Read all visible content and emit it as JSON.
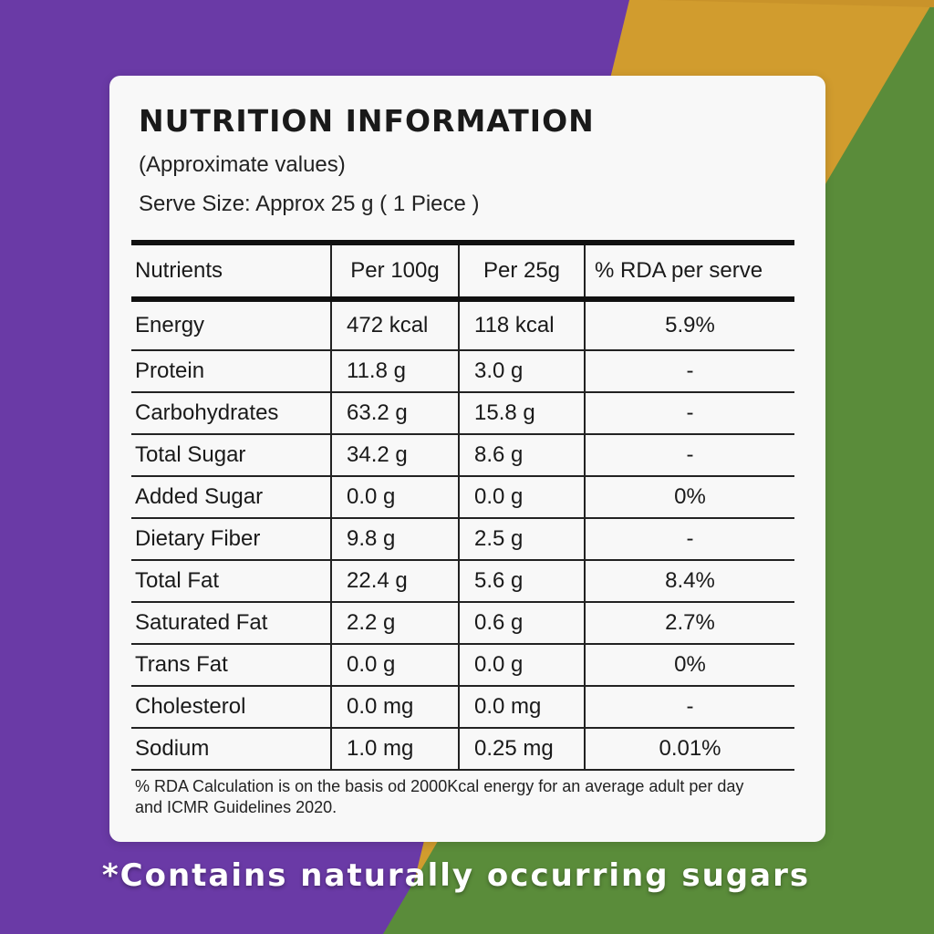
{
  "colors": {
    "purple": "#6a3aa6",
    "gold": "#d19c2e",
    "green": "#5a8c3a",
    "card": "#f8f8f8"
  },
  "title": "NUTRITION INFORMATION",
  "subtitle": "(Approximate values)",
  "serve_size": "Serve Size: Approx 25 g ( 1 Piece )",
  "table": {
    "headers": [
      "Nutrients",
      "Per 100g",
      "Per 25g",
      "% RDA per serve"
    ],
    "rows": [
      [
        "Energy",
        "472 kcal",
        "118 kcal",
        "5.9%"
      ],
      [
        "Protein",
        "11.8 g",
        "3.0 g",
        "-"
      ],
      [
        "Carbohydrates",
        "63.2 g",
        "15.8 g",
        "-"
      ],
      [
        "Total Sugar",
        "34.2 g",
        "8.6 g",
        "-"
      ],
      [
        "Added Sugar",
        "0.0 g",
        "0.0 g",
        "0%"
      ],
      [
        "Dietary Fiber",
        "9.8 g",
        "2.5 g",
        "-"
      ],
      [
        "Total Fat",
        "22.4 g",
        "5.6 g",
        "8.4%"
      ],
      [
        "Saturated Fat",
        "2.2 g",
        "0.6 g",
        "2.7%"
      ],
      [
        "Trans Fat",
        "0.0 g",
        "0.0 g",
        "0%"
      ],
      [
        "Cholesterol",
        "0.0 mg",
        "0.0 mg",
        "-"
      ],
      [
        "Sodium",
        "1.0 mg",
        "0.25 mg",
        "0.01%"
      ]
    ]
  },
  "footnote": "% RDA Calculation is on the basis od 2000Kcal energy for an average adult per day and ICMR Guidelines 2020.",
  "claim": "*Contains naturally occurring sugars"
}
